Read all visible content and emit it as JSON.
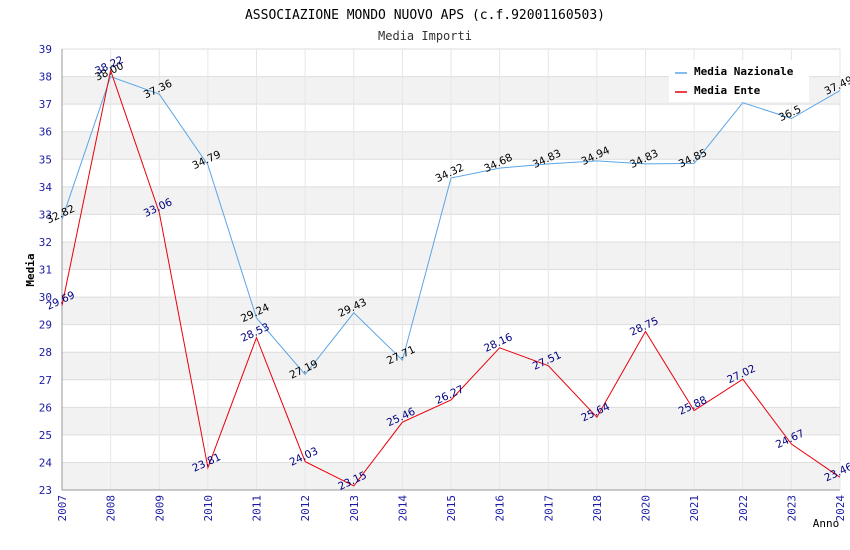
{
  "chart_data": {
    "type": "line",
    "title": "ASSOCIAZIONE MONDO NUOVO APS (c.f.92001160503)",
    "subtitle": "Media Importi",
    "xlabel": "Anno",
    "ylabel": "Media",
    "ylim": [
      23,
      39
    ],
    "yticks": [
      "23",
      "24",
      "25",
      "26",
      "27",
      "28",
      "29",
      "30",
      "31",
      "32",
      "33",
      "34",
      "35",
      "36",
      "37",
      "38",
      "39"
    ],
    "x": [
      "2007",
      "2008",
      "2009",
      "2010",
      "2011",
      "2012",
      "2013",
      "2014",
      "2015",
      "2016",
      "2017",
      "2018",
      "2020",
      "2021",
      "2022",
      "2023",
      "2024"
    ],
    "grid": true,
    "legend": "top-right",
    "series": [
      {
        "name": "Media Nazionale",
        "color": "#5aa5e6",
        "label_color": "#000000",
        "values": [
          32.82,
          38.0,
          37.36,
          34.79,
          29.24,
          27.19,
          29.43,
          27.71,
          34.32,
          34.68,
          34.83,
          34.94,
          34.83,
          34.85,
          37.05,
          36.48,
          37.49
        ],
        "labels": [
          "32.82",
          "38.00",
          "37.36",
          "34.79",
          "29.24",
          "27.19",
          "29.43",
          "27.71",
          "34.32",
          "34.68",
          "34.83",
          "34.94",
          "34.83",
          "34.85",
          "",
          "36.5",
          "37.49"
        ]
      },
      {
        "name": "Media Ente",
        "color": "#e8000b",
        "label_color": "#00007f",
        "values": [
          29.69,
          38.22,
          33.06,
          23.81,
          28.53,
          24.03,
          23.15,
          25.46,
          26.27,
          28.16,
          27.51,
          25.64,
          28.75,
          25.88,
          27.02,
          24.67,
          23.46
        ],
        "labels": [
          "29.69",
          "38.22",
          "33.06",
          "23.81",
          "28.53",
          "24.03",
          "23.15",
          "25.46",
          "26.27",
          "28.16",
          "27.51",
          "25.64",
          "28.75",
          "25.88",
          "27.02",
          "24.67",
          "23.46"
        ]
      }
    ]
  }
}
